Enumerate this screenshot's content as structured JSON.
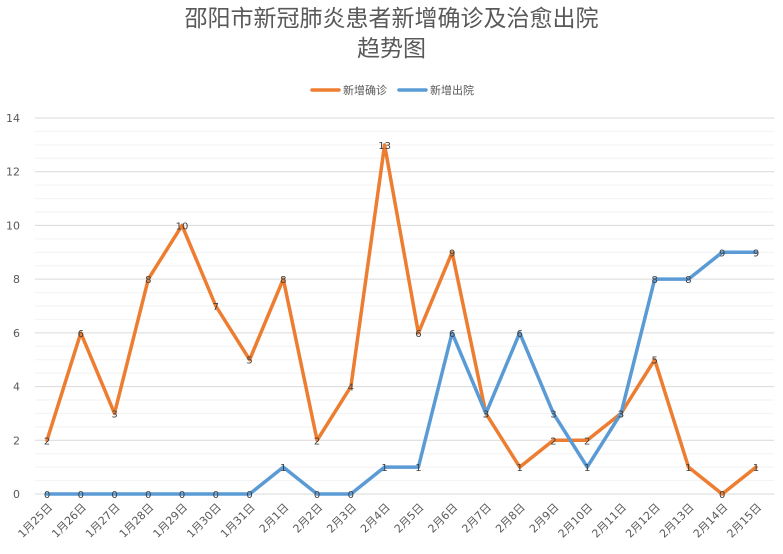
{
  "chart_data": {
    "type": "line",
    "title_lines": [
      "邵阳市新冠肺炎患者新增确诊及治愈出院",
      "趋势图"
    ],
    "categories": [
      "1月25日",
      "1月26日",
      "1月27日",
      "1月28日",
      "1月29日",
      "1月30日",
      "1月31日",
      "2月1日",
      "2月2日",
      "2月3日",
      "2月4日",
      "2月5日",
      "2月6日",
      "2月7日",
      "2月8日",
      "2月9日",
      "2月10日",
      "2月11日",
      "2月12日",
      "2月13日",
      "2月14日",
      "2月15日"
    ],
    "series": [
      {
        "name": "新增确诊",
        "color": "#ED7D31",
        "values": [
          2,
          6,
          3,
          8,
          10,
          7,
          5,
          8,
          2,
          4,
          13,
          6,
          9,
          3,
          1,
          2,
          2,
          3,
          5,
          1,
          0,
          1
        ]
      },
      {
        "name": "新增出院",
        "color": "#5B9BD5",
        "values": [
          0,
          0,
          0,
          0,
          0,
          0,
          0,
          1,
          0,
          0,
          1,
          1,
          6,
          3,
          6,
          3,
          1,
          3,
          8,
          8,
          9,
          9
        ]
      }
    ],
    "ylim": [
      0,
      14
    ],
    "yticks": [
      0,
      2,
      4,
      6,
      8,
      10,
      12,
      14
    ],
    "grid": true,
    "legend_position": "top"
  }
}
